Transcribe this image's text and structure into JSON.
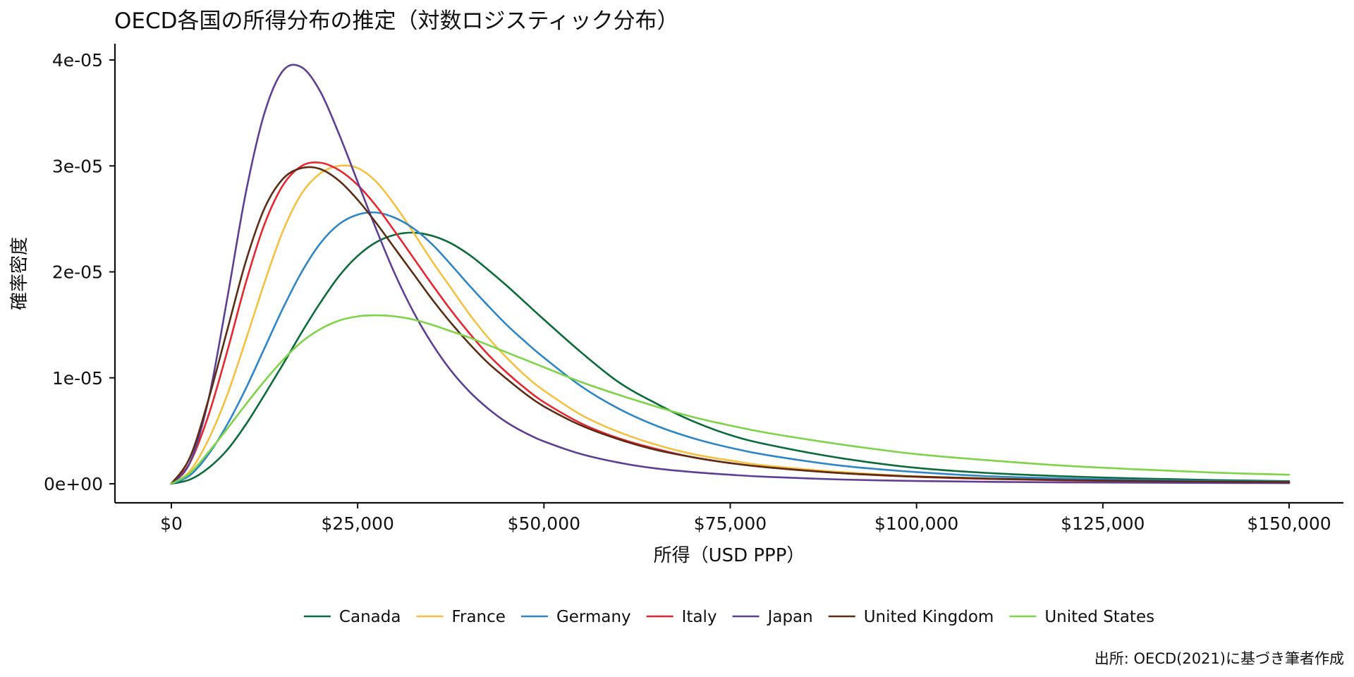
{
  "chart_data": {
    "type": "line",
    "title": "OECD各国の所得分布の推定（対数ロジスティック分布）",
    "xlabel": "所得（USD PPP）",
    "ylabel": "確率密度",
    "caption": "出所: OECD(2021)に基づき筆者作成",
    "xlim": [
      0,
      150000
    ],
    "ylim": [
      0,
      4e-05
    ],
    "x_ticks": [
      {
        "value": 0,
        "label": "$0"
      },
      {
        "value": 25000,
        "label": "$25,000"
      },
      {
        "value": 50000,
        "label": "$50,000"
      },
      {
        "value": 75000,
        "label": "$75,000"
      },
      {
        "value": 100000,
        "label": "$100,000"
      },
      {
        "value": 125000,
        "label": "$125,000"
      },
      {
        "value": 150000,
        "label": "$150,000"
      }
    ],
    "y_ticks": [
      {
        "value": 0,
        "label": "0e+00"
      },
      {
        "value": 1e-05,
        "label": "1e-05"
      },
      {
        "value": 2e-05,
        "label": "2e-05"
      },
      {
        "value": 3e-05,
        "label": "3e-05"
      },
      {
        "value": 4e-05,
        "label": "4e-05"
      }
    ],
    "grid": false,
    "legend_position": "bottom",
    "series": [
      {
        "name": "Canada",
        "color": "#0b6b3a",
        "x": [
          0,
          2500,
          5000,
          7500,
          10000,
          12500,
          15000,
          17500,
          20000,
          22500,
          25000,
          27500,
          30000,
          32500,
          35000,
          37500,
          40000,
          42500,
          45000,
          47500,
          50000,
          55000,
          60000,
          65000,
          70000,
          75000,
          80000,
          90000,
          100000,
          110000,
          120000,
          130000,
          140000,
          150000
        ],
        "y": [
          0,
          4e-07,
          1.5e-06,
          3.2e-06,
          5.6e-06,
          8.4e-06,
          1.13e-05,
          1.43e-05,
          1.71e-05,
          1.96e-05,
          2.15e-05,
          2.28e-05,
          2.35e-05,
          2.37e-05,
          2.34e-05,
          2.27e-05,
          2.16e-05,
          2.02e-05,
          1.87e-05,
          1.71e-05,
          1.55e-05,
          1.24e-05,
          9.6e-06,
          7.6e-06,
          5.9e-06,
          4.6e-06,
          3.7e-06,
          2.4e-06,
          1.5e-06,
          1e-06,
          7e-07,
          5e-07,
          3.5e-07,
          2.5e-07
        ]
      },
      {
        "name": "France",
        "color": "#f5c040",
        "x": [
          0,
          2500,
          5000,
          7500,
          10000,
          12500,
          15000,
          17500,
          20000,
          22500,
          25000,
          27500,
          30000,
          32500,
          35000,
          37500,
          40000,
          42500,
          45000,
          47500,
          50000,
          55000,
          60000,
          65000,
          70000,
          75000,
          80000,
          90000,
          100000,
          110000,
          120000,
          130000,
          140000,
          150000
        ],
        "y": [
          0,
          1.2e-06,
          4.2e-06,
          8.4e-06,
          1.36e-05,
          1.9e-05,
          2.39e-05,
          2.74e-05,
          2.93e-05,
          3e-05,
          2.98e-05,
          2.85e-05,
          2.63e-05,
          2.37e-05,
          2.1e-05,
          1.85e-05,
          1.6e-05,
          1.38e-05,
          1.19e-05,
          1.02e-05,
          8.8e-06,
          6.5e-06,
          4.9e-06,
          3.7e-06,
          2.8e-06,
          2.2e-06,
          1.7e-06,
          1.1e-06,
          7e-07,
          5e-07,
          3.5e-07,
          2.5e-07,
          2e-07,
          1.5e-07
        ]
      },
      {
        "name": "Germany",
        "color": "#2e86c8",
        "x": [
          0,
          2500,
          5000,
          7500,
          10000,
          12500,
          15000,
          17500,
          20000,
          22500,
          25000,
          27500,
          30000,
          32500,
          35000,
          37500,
          40000,
          42500,
          45000,
          47500,
          50000,
          55000,
          60000,
          65000,
          70000,
          75000,
          80000,
          90000,
          100000,
          110000,
          120000,
          130000,
          140000,
          150000
        ],
        "y": [
          0,
          8e-07,
          2.8e-06,
          5.6e-06,
          9e-06,
          1.28e-05,
          1.66e-05,
          2e-05,
          2.27e-05,
          2.45e-05,
          2.54e-05,
          2.56e-05,
          2.51e-05,
          2.41e-05,
          2.26e-05,
          2.07e-05,
          1.87e-05,
          1.68e-05,
          1.5e-05,
          1.34e-05,
          1.19e-05,
          9.2e-06,
          7.1e-06,
          5.5e-06,
          4.3e-06,
          3.4e-06,
          2.7e-06,
          1.7e-06,
          1.1e-06,
          7e-07,
          5e-07,
          3.5e-07,
          2.5e-07,
          2e-07
        ]
      },
      {
        "name": "Italy",
        "color": "#e8262f",
        "x": [
          0,
          2500,
          5000,
          7500,
          10000,
          12500,
          15000,
          17500,
          20000,
          22500,
          25000,
          27500,
          30000,
          32500,
          35000,
          37500,
          40000,
          42500,
          45000,
          47500,
          50000,
          55000,
          60000,
          65000,
          70000,
          75000,
          80000,
          90000,
          100000,
          110000,
          120000,
          130000,
          140000,
          150000
        ],
        "y": [
          0,
          2e-06,
          6.5e-06,
          1.25e-05,
          1.9e-05,
          2.45e-05,
          2.82e-05,
          3e-05,
          3.03e-05,
          2.96e-05,
          2.82e-05,
          2.62e-05,
          2.38e-05,
          2.13e-05,
          1.88e-05,
          1.64e-05,
          1.42e-05,
          1.22e-05,
          1.05e-05,
          9e-06,
          7.7e-06,
          5.7e-06,
          4.3e-06,
          3.3e-06,
          2.5e-06,
          1.95e-06,
          1.55e-06,
          1e-06,
          6.5e-07,
          4.5e-07,
          3.2e-07,
          2.4e-07,
          1.8e-07,
          1.4e-07
        ]
      },
      {
        "name": "Japan",
        "color": "#5e3f94",
        "x": [
          0,
          2500,
          5000,
          7500,
          10000,
          12500,
          15000,
          17500,
          20000,
          22500,
          25000,
          27500,
          30000,
          32500,
          35000,
          37500,
          40000,
          42500,
          45000,
          47500,
          50000,
          55000,
          60000,
          65000,
          70000,
          75000,
          80000,
          90000,
          100000,
          110000,
          120000,
          130000,
          140000,
          150000
        ],
        "y": [
          0,
          2e-06,
          8e-06,
          1.75e-05,
          2.75e-05,
          3.5e-05,
          3.9e-05,
          3.93e-05,
          3.7e-05,
          3.3e-05,
          2.85e-05,
          2.4e-05,
          1.98e-05,
          1.62e-05,
          1.32e-05,
          1.07e-05,
          8.7e-06,
          7.1e-06,
          5.8e-06,
          4.8e-06,
          4e-06,
          2.8e-06,
          2e-06,
          1.45e-06,
          1.1e-06,
          8.5e-07,
          6.5e-07,
          4e-07,
          2.6e-07,
          1.8e-07,
          1.3e-07,
          1e-07,
          8e-08,
          6e-08
        ]
      },
      {
        "name": "United Kingdom",
        "color": "#5a2d14",
        "x": [
          0,
          2500,
          5000,
          7500,
          10000,
          12500,
          15000,
          17500,
          20000,
          22500,
          25000,
          27500,
          30000,
          32500,
          35000,
          37500,
          40000,
          42500,
          45000,
          47500,
          50000,
          55000,
          60000,
          65000,
          70000,
          75000,
          80000,
          90000,
          100000,
          110000,
          120000,
          130000,
          140000,
          150000
        ],
        "y": [
          0,
          2.5e-06,
          8e-06,
          1.45e-05,
          2.1e-05,
          2.6e-05,
          2.88e-05,
          2.98e-05,
          2.97e-05,
          2.86e-05,
          2.68e-05,
          2.46e-05,
          2.22e-05,
          1.98e-05,
          1.74e-05,
          1.52e-05,
          1.32e-05,
          1.14e-05,
          9.9e-06,
          8.5e-06,
          7.3e-06,
          5.5e-06,
          4.2e-06,
          3.2e-06,
          2.5e-06,
          1.95e-06,
          1.55e-06,
          1e-06,
          6.8e-07,
          4.8e-07,
          3.5e-07,
          2.6e-07,
          2e-07,
          1.6e-07
        ]
      },
      {
        "name": "United States",
        "color": "#7ed348",
        "x": [
          0,
          2500,
          5000,
          7500,
          10000,
          12500,
          15000,
          17500,
          20000,
          22500,
          25000,
          27500,
          30000,
          32500,
          35000,
          37500,
          40000,
          42500,
          45000,
          47500,
          50000,
          55000,
          60000,
          65000,
          70000,
          75000,
          80000,
          90000,
          100000,
          110000,
          120000,
          130000,
          140000,
          150000
        ],
        "y": [
          0,
          1e-06,
          3e-06,
          5.2e-06,
          7.5e-06,
          9.7e-06,
          1.17e-05,
          1.34e-05,
          1.46e-05,
          1.54e-05,
          1.58e-05,
          1.59e-05,
          1.58e-05,
          1.55e-05,
          1.5e-05,
          1.44e-05,
          1.38e-05,
          1.31e-05,
          1.24e-05,
          1.17e-05,
          1.1e-05,
          9.6e-06,
          8.4e-06,
          7.3e-06,
          6.3e-06,
          5.5e-06,
          4.8e-06,
          3.7e-06,
          2.8e-06,
          2.2e-06,
          1.7e-06,
          1.35e-06,
          1.05e-06,
          8.5e-07
        ]
      }
    ]
  }
}
